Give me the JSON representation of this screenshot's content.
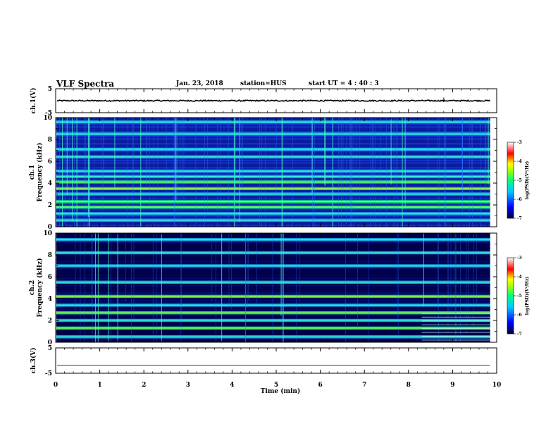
{
  "header": {
    "title": "VLF Spectra",
    "date": "Jan. 23, 2018",
    "station": "station=HUS",
    "start": "start  UT =   4 : 40 : 3"
  },
  "colors": {
    "colormap": [
      "#000044",
      "#0000ff",
      "#00d0ff",
      "#00ff80",
      "#ffff00",
      "#ff0000",
      "#ffffff"
    ],
    "background": "#000080"
  },
  "chart_data": [
    {
      "type": "line",
      "panel": "ch1-waveform",
      "ylabel": "ch.1(V)",
      "ylim": [
        -5,
        5
      ],
      "yticks": [
        "5",
        "-5"
      ],
      "level": 0,
      "noise": 0.25
    },
    {
      "type": "heatmap",
      "panel": "ch1-spectrogram",
      "ylabel_line1": "ch.1",
      "ylabel_line2": "Frequency (kHz)",
      "ylim": [
        0,
        10
      ],
      "yticks": [
        "0",
        "2",
        "4",
        "6",
        "8",
        "10"
      ],
      "bands_khz": [
        0.6,
        1.2,
        1.8,
        2.3,
        3.0,
        3.5,
        4.1,
        4.6,
        5.1,
        6.4,
        7.1,
        8.5,
        9.6
      ],
      "strong_bands_khz": [
        1.8,
        2.3,
        3.5,
        4.1
      ],
      "colorbar_label": "log(PSD)(V²/Hz)",
      "colorbar_ticks": [
        "-3",
        "-4",
        "-5",
        "-6",
        "-7"
      ],
      "colorbar_range": [
        -7,
        -3
      ]
    },
    {
      "type": "heatmap",
      "panel": "ch2-spectrogram",
      "ylabel_line1": "ch.2",
      "ylabel_line2": "Frequency (kHz)",
      "ylim": [
        0,
        10
      ],
      "yticks": [
        "0",
        "2",
        "4",
        "6",
        "8",
        "10"
      ],
      "bands_khz": [
        0.5,
        1.3,
        2.0,
        2.7,
        3.4,
        4.2,
        5.5,
        7.0,
        8.2,
        9.4
      ],
      "strong_bands_khz": [
        1.3,
        2.7,
        4.2
      ],
      "colorbar_label": "log(PSD)(V²/Hz)",
      "colorbar_ticks": [
        "-3",
        "-4",
        "-5",
        "-6",
        "-7"
      ],
      "colorbar_range": [
        -7,
        -3
      ]
    },
    {
      "type": "line",
      "panel": "ch3-waveform",
      "ylabel": "ch.3(V)",
      "ylim": [
        -5,
        5
      ],
      "yticks": [
        "5",
        "-5"
      ],
      "level": -1.8,
      "noise": 0
    }
  ],
  "xaxis": {
    "label": "Time (min)",
    "xlim": [
      0,
      10
    ],
    "data_end": 9.85,
    "ticks": [
      "0",
      "1",
      "2",
      "3",
      "4",
      "5",
      "6",
      "7",
      "8",
      "9",
      "10"
    ]
  }
}
